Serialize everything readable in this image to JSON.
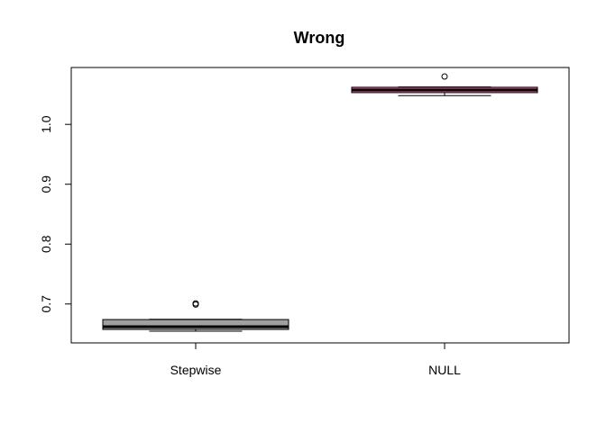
{
  "chart_data": {
    "type": "box",
    "title": "Wrong",
    "xlabel": "",
    "ylabel": "",
    "ylim": [
      0.635,
      1.095
    ],
    "yticks": [
      0.7,
      0.8,
      0.9,
      1.0
    ],
    "ytick_labels": [
      "0.7",
      "0.8",
      "0.9",
      "1.0"
    ],
    "categories": [
      "Stepwise",
      "NULL"
    ],
    "boxes": [
      {
        "category": "Stepwise",
        "whisker_low": 0.6545,
        "q1": 0.6575,
        "median": 0.662,
        "q3": 0.674,
        "whisker_high": 0.6745,
        "outliers": [
          0.699,
          0.701
        ],
        "fill": "#a0a0a0",
        "median_color": "#000000"
      },
      {
        "category": "NULL",
        "whisker_low": 1.048,
        "q1": 1.053,
        "median": 1.0575,
        "q3": 1.062,
        "whisker_high": 1.0625,
        "outliers": [
          1.08
        ],
        "fill": "#e85a9e",
        "median_color": "#000000"
      }
    ],
    "grid": false,
    "legend": "none"
  }
}
